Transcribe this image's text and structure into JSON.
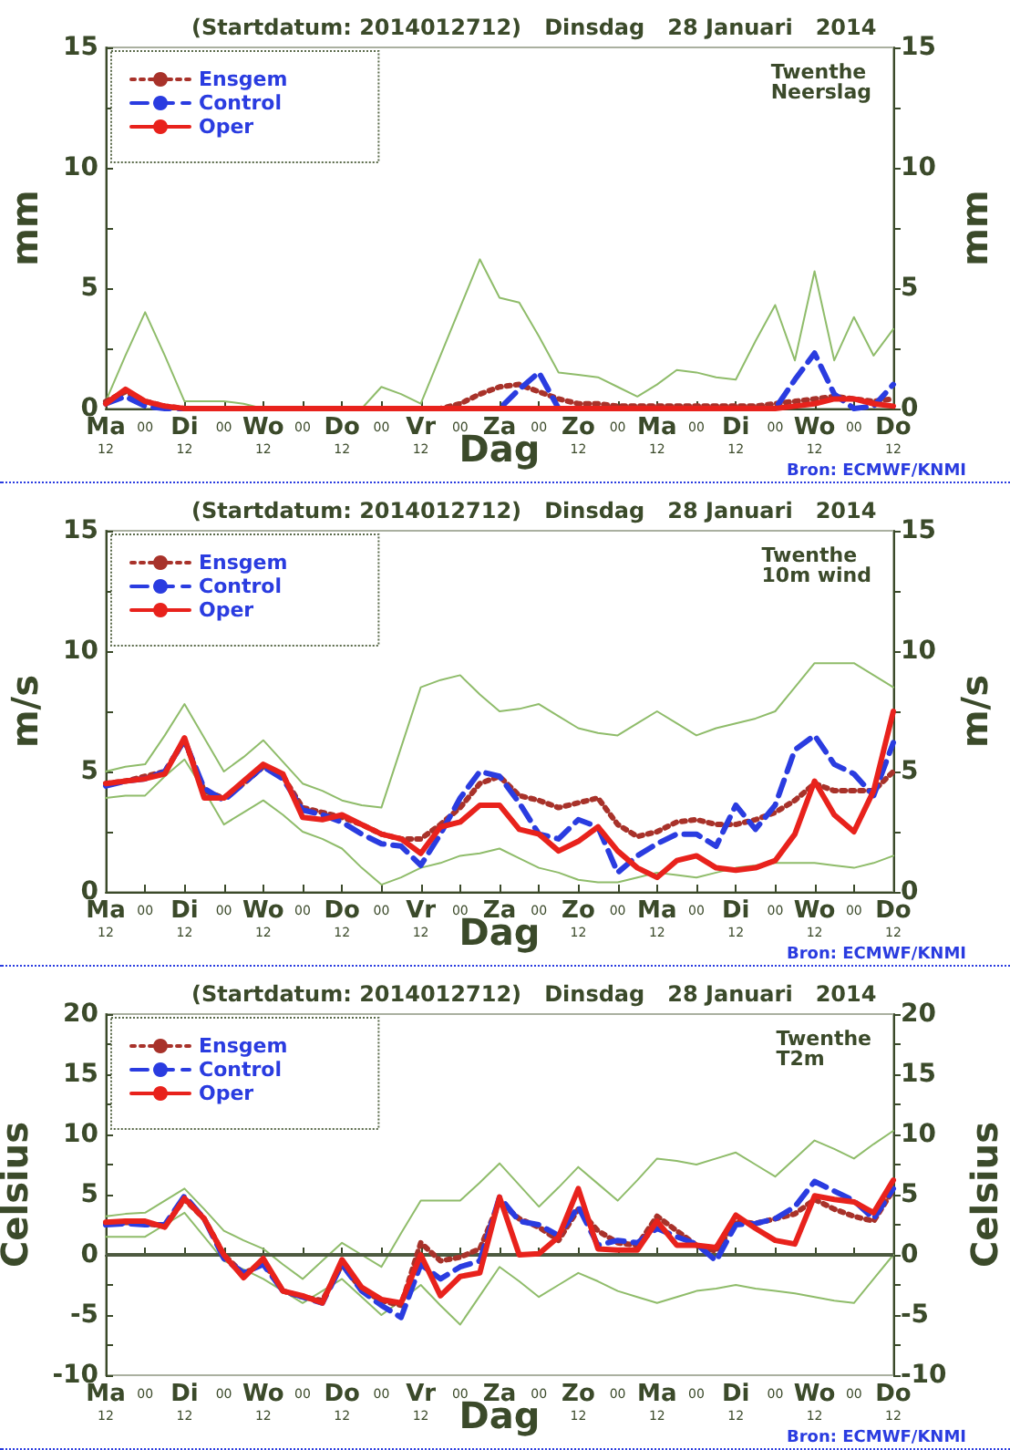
{
  "chart_data": [
    {
      "type": "line",
      "title": "(Startdatum: 2014012712)   Dinsdag   28 Januari   2014",
      "xlabel": "Dag",
      "ylabel": "mm",
      "y2label": "mm",
      "annotations": [
        "Twenthe\nNeerslag",
        "Bron: ECMWF/KNMI"
      ],
      "legend": "top left",
      "marker": "none",
      "categories": [
        "Ma\n12",
        null,
        "00",
        null,
        "Di\n12",
        null,
        "00",
        null,
        "Wo\n12",
        null,
        "00",
        null,
        "Do\n12",
        null,
        "00",
        null,
        "Vr\n12",
        null,
        "00",
        null,
        "Za",
        null,
        "00",
        null,
        "Zo\n12",
        null,
        "00",
        null,
        "Ma\n12",
        null,
        "00",
        null,
        "Di\n12",
        null,
        "00",
        null,
        "Wo\n12",
        null,
        "00",
        null,
        "Do\n12"
      ],
      "ylim": [
        0,
        15
      ],
      "yticks": [
        0,
        {
          "value": 2.5,
          "label": null
        },
        5,
        {
          "value": 7.5,
          "label": null
        },
        10,
        {
          "value": 12.5,
          "label": null
        },
        15
      ],
      "y2lim": [
        0,
        15
      ],
      "y2ticks": [
        0,
        {
          "value": 2.5,
          "label": null
        },
        5,
        {
          "value": 7.5,
          "label": null
        },
        10,
        {
          "value": 12.5,
          "label": null
        },
        15
      ],
      "series": [
        {
          "color": "#8fbc6a",
          "line_style": "solid",
          "values": [
            0.3,
            2.2,
            4.0,
            2.2,
            0.3,
            0.3,
            0.3,
            0.2,
            0,
            0,
            0,
            0,
            0,
            0,
            0.9,
            0.6,
            0.2,
            2.2,
            4.2,
            6.2,
            4.6,
            4.4,
            3.0,
            1.5,
            1.4,
            1.3,
            0.9,
            0.5,
            1.0,
            1.6,
            1.5,
            1.3,
            1.2,
            2.8,
            4.3,
            2.0,
            5.7,
            2.0,
            3.8,
            2.2,
            3.3
          ]
        },
        {
          "name": "Ensgem",
          "color": "#a8322a",
          "line_style": "dotted",
          "values": [
            0.3,
            0.7,
            0.3,
            0.1,
            0,
            0,
            0,
            0,
            0,
            0,
            0,
            0,
            0,
            0,
            0,
            0,
            0,
            0,
            0.2,
            0.6,
            0.9,
            1.0,
            0.7,
            0.4,
            0.2,
            0.2,
            0.1,
            0.1,
            0.1,
            0.1,
            0.1,
            0.1,
            0.1,
            0.1,
            0.2,
            0.3,
            0.4,
            0.5,
            0.4,
            0.3,
            0.4
          ]
        },
        {
          "name": "Control",
          "color": "#2a3ce0",
          "line_style": "dashed",
          "values": [
            0.2,
            0.5,
            0.1,
            0,
            0,
            null,
            null,
            null,
            null,
            null,
            null,
            null,
            null,
            null,
            null,
            null,
            null,
            null,
            null,
            0,
            0,
            0.8,
            1.5,
            0,
            0,
            null,
            null,
            null,
            null,
            null,
            null,
            null,
            null,
            0,
            0,
            1.2,
            2.3,
            0.6,
            0,
            0.1,
            1.0
          ]
        },
        {
          "name": "Oper",
          "color": "#e8221c",
          "line_style": "solid",
          "values": [
            0.2,
            0.8,
            0.3,
            0.1,
            0,
            0,
            0,
            0,
            0,
            0,
            0,
            0,
            0,
            0,
            0,
            0,
            0,
            0,
            0,
            0,
            0,
            0,
            0,
            0,
            0,
            0,
            0,
            0,
            0,
            0,
            0,
            0,
            0,
            0,
            0,
            0.1,
            0.2,
            0.4,
            0.4,
            0.2,
            0.1
          ]
        }
      ]
    },
    {
      "type": "line",
      "title": "(Startdatum: 2014012712)   Dinsdag   28 Januari   2014",
      "xlabel": "Dag",
      "ylabel": "m/s",
      "y2label": "m/s",
      "annotations": [
        "Twenthe\n10m wind",
        "Bron: ECMWF/KNMI"
      ],
      "legend": "top left",
      "marker": "none",
      "categories": [
        "Ma\n12",
        null,
        "00",
        null,
        "Di\n12",
        null,
        "00",
        null,
        "Wo\n12",
        null,
        "00",
        null,
        "Do\n12",
        null,
        "00",
        null,
        "Vr\n12",
        null,
        "00",
        null,
        "Za",
        null,
        "00",
        null,
        "Zo\n12",
        null,
        "00",
        null,
        "Ma\n12",
        null,
        "00",
        null,
        "Di\n12",
        null,
        "00",
        null,
        "Wo\n12",
        null,
        "00",
        null,
        "Do\n12"
      ],
      "ylim": [
        0,
        15
      ],
      "yticks": [
        0,
        {
          "value": 2.5,
          "label": null
        },
        5,
        {
          "value": 7.5,
          "label": null
        },
        10,
        {
          "value": 12.5,
          "label": null
        },
        15
      ],
      "y2lim": [
        0,
        15
      ],
      "y2ticks": [
        0,
        {
          "value": 2.5,
          "label": null
        },
        5,
        {
          "value": 7.5,
          "label": null
        },
        10,
        {
          "value": 12.5,
          "label": null
        },
        15
      ],
      "series": [
        {
          "color": "#8fbc6a",
          "line_style": "solid",
          "values": [
            5.0,
            5.2,
            5.3,
            6.5,
            7.8,
            6.4,
            5.0,
            5.6,
            6.3,
            5.4,
            4.5,
            4.2,
            3.8,
            3.6,
            3.5,
            6.0,
            8.5,
            8.8,
            9.0,
            8.2,
            7.5,
            7.6,
            7.8,
            7.3,
            6.8,
            6.6,
            6.5,
            7.0,
            7.5,
            7.0,
            6.5,
            6.8,
            7.0,
            7.2,
            7.5,
            8.5,
            9.5,
            9.5,
            9.5,
            9.0,
            8.5
          ]
        },
        {
          "color": "#8fbc6a",
          "line_style": "solid",
          "values": [
            3.9,
            4.0,
            4.0,
            4.8,
            5.5,
            4.2,
            2.8,
            3.3,
            3.8,
            3.2,
            2.5,
            2.2,
            1.8,
            1.0,
            0.3,
            0.6,
            1.0,
            1.2,
            1.5,
            1.6,
            1.8,
            1.4,
            1.0,
            0.8,
            0.5,
            0.4,
            0.4,
            0.6,
            0.8,
            0.7,
            0.6,
            0.8,
            1.0,
            1.1,
            1.2,
            1.2,
            1.2,
            1.1,
            1.0,
            1.2,
            1.5
          ]
        },
        {
          "name": "Ensgem",
          "color": "#a8322a",
          "line_style": "dotted",
          "values": [
            4.5,
            4.6,
            4.8,
            5.0,
            6.3,
            4.2,
            3.9,
            4.5,
            5.2,
            4.8,
            3.5,
            3.3,
            3.1,
            2.8,
            2.4,
            2.2,
            2.2,
            2.8,
            3.5,
            4.5,
            4.8,
            4.0,
            3.8,
            3.5,
            3.7,
            3.9,
            2.8,
            2.3,
            2.5,
            2.9,
            3.0,
            2.8,
            2.8,
            3.0,
            3.3,
            3.8,
            4.5,
            4.2,
            4.2,
            4.2,
            5.0
          ]
        },
        {
          "name": "Control",
          "color": "#2a3ce0",
          "line_style": "dashed",
          "values": [
            4.4,
            4.6,
            4.7,
            5.0,
            6.3,
            4.3,
            3.8,
            4.5,
            5.2,
            4.7,
            3.4,
            3.2,
            2.9,
            2.4,
            2.0,
            1.9,
            1.1,
            2.4,
            3.9,
            5.0,
            4.8,
            3.7,
            2.4,
            2.2,
            3.0,
            2.7,
            0.8,
            1.5,
            2.0,
            2.4,
            2.4,
            1.9,
            3.6,
            2.6,
            3.6,
            5.9,
            6.5,
            5.3,
            4.9,
            4.0,
            6.2
          ]
        },
        {
          "name": "Oper",
          "color": "#e8221c",
          "line_style": "solid",
          "values": [
            4.5,
            4.6,
            4.7,
            4.9,
            6.4,
            3.9,
            3.9,
            4.6,
            5.3,
            4.9,
            3.1,
            3.0,
            3.2,
            2.8,
            2.4,
            2.2,
            1.6,
            2.7,
            2.9,
            3.6,
            3.6,
            2.6,
            2.4,
            1.7,
            2.1,
            2.7,
            1.7,
            1.0,
            0.6,
            1.3,
            1.5,
            1.0,
            0.9,
            1.0,
            1.3,
            2.4,
            4.6,
            3.2,
            2.5,
            4.2,
            7.5
          ]
        }
      ]
    },
    {
      "type": "line",
      "title": "(Startdatum: 2014012712)   Dinsdag   28 Januari   2014",
      "xlabel": "Dag",
      "ylabel": "Celsius",
      "y2label": "Celsius",
      "annotations": [
        "Twenthe\nT2m",
        "Bron: ECMWF/KNMI"
      ],
      "legend": "top left",
      "marker": "none",
      "categories": [
        "Ma\n12",
        null,
        "00",
        null,
        "Di\n12",
        null,
        "00",
        null,
        "Wo\n12",
        null,
        "00",
        null,
        "Do\n12",
        null,
        "00",
        null,
        "Vr\n12",
        null,
        "00",
        null,
        "Za",
        null,
        "00",
        null,
        "Zo\n12",
        null,
        "00",
        null,
        "Ma\n12",
        null,
        "00",
        null,
        "Di\n12",
        null,
        "00",
        null,
        "Wo\n12",
        null,
        "00",
        null,
        "Do\n12"
      ],
      "ylim": [
        -10,
        20
      ],
      "yticks": [
        -10,
        {
          "value": -7.5,
          "label": null
        },
        -5,
        {
          "value": -2.5,
          "label": null
        },
        0,
        {
          "value": 2.5,
          "label": null
        },
        5,
        {
          "value": 7.5,
          "label": null
        },
        10,
        {
          "value": 12.5,
          "label": null
        },
        15,
        {
          "value": 17.5,
          "label": null
        },
        20
      ],
      "y2lim": [
        -10,
        20
      ],
      "y2ticks": [
        -10,
        {
          "value": -7.5,
          "label": null
        },
        -5,
        {
          "value": -2.5,
          "label": null
        },
        0,
        {
          "value": 2.5,
          "label": null
        },
        5,
        {
          "value": 7.5,
          "label": null
        },
        10,
        {
          "value": 12.5,
          "label": null
        },
        15,
        {
          "value": 17.5,
          "label": null
        },
        20
      ],
      "ref_lines": [
        {
          "axis": "y",
          "value": 0,
          "color": "#4d5a40"
        }
      ],
      "series": [
        {
          "color": "#8fbc6a",
          "line_style": "solid",
          "values": [
            3.2,
            3.4,
            3.5,
            4.5,
            5.5,
            3.8,
            2.0,
            1.2,
            0.5,
            -0.8,
            -2.0,
            -0.5,
            1.0,
            0.0,
            -1.0,
            1.8,
            4.5,
            4.5,
            4.5,
            6.0,
            7.6,
            5.8,
            4.0,
            5.6,
            7.3,
            5.9,
            4.5,
            6.2,
            8.0,
            7.8,
            7.5,
            8.0,
            8.5,
            7.5,
            6.5,
            8.0,
            9.5,
            8.8,
            8.0,
            9.2,
            10.3
          ]
        },
        {
          "color": "#8fbc6a",
          "line_style": "solid",
          "values": [
            1.5,
            1.5,
            1.5,
            2.5,
            3.5,
            1.5,
            -0.5,
            -1.2,
            -2.0,
            -3.0,
            -4.0,
            -3.0,
            -2.0,
            -3.5,
            -5.0,
            -3.8,
            -2.5,
            -4.2,
            -5.8,
            -3.4,
            -1.0,
            -2.2,
            -3.5,
            -2.5,
            -1.5,
            -2.2,
            -3.0,
            -3.5,
            -4.0,
            -3.5,
            -3.0,
            -2.8,
            -2.5,
            -2.8,
            -3.0,
            -3.2,
            -3.5,
            -3.8,
            -4.0,
            -2.0,
            0.0
          ]
        },
        {
          "name": "Ensgem",
          "color": "#a8322a",
          "line_style": "dotted",
          "values": [
            2.6,
            2.7,
            2.6,
            2.4,
            4.6,
            3.0,
            0.0,
            -1.6,
            -0.6,
            -3.0,
            -3.5,
            -3.8,
            -0.8,
            -2.9,
            -3.8,
            -4.2,
            1.0,
            -0.5,
            -0.2,
            0.5,
            4.4,
            3.0,
            2.3,
            1.2,
            3.8,
            2.0,
            1.0,
            0.8,
            3.2,
            2.0,
            0.8,
            0.3,
            2.8,
            2.6,
            3.0,
            3.4,
            4.6,
            3.8,
            3.2,
            2.8,
            5.4
          ]
        },
        {
          "name": "Control",
          "color": "#2a3ce0",
          "line_style": "dashed",
          "values": [
            2.5,
            2.6,
            2.5,
            2.5,
            4.9,
            3.0,
            -0.3,
            -1.5,
            -0.8,
            -3.0,
            -3.5,
            -4.0,
            -0.8,
            -3.0,
            -4.2,
            -5.2,
            -0.8,
            -2.0,
            -1.0,
            -0.5,
            4.8,
            2.8,
            2.5,
            1.6,
            4.0,
            0.8,
            1.2,
            1.0,
            2.2,
            1.5,
            0.9,
            -0.5,
            2.5,
            2.6,
            3.0,
            4.0,
            6.1,
            5.3,
            4.5,
            3.0,
            5.5
          ]
        },
        {
          "name": "Oper",
          "color": "#e8221c",
          "line_style": "solid",
          "values": [
            2.7,
            2.8,
            2.8,
            2.3,
            4.7,
            3.0,
            0.0,
            -1.9,
            -0.3,
            -3.0,
            -3.4,
            -4.0,
            -0.4,
            -2.7,
            -3.7,
            -4.0,
            0.0,
            -3.4,
            -1.8,
            -1.5,
            4.8,
            0.0,
            0.1,
            1.5,
            5.5,
            0.5,
            0.4,
            0.4,
            2.8,
            0.8,
            0.8,
            0.6,
            3.3,
            2.2,
            1.2,
            0.9,
            4.9,
            4.6,
            4.4,
            3.5,
            6.2
          ]
        }
      ]
    }
  ]
}
